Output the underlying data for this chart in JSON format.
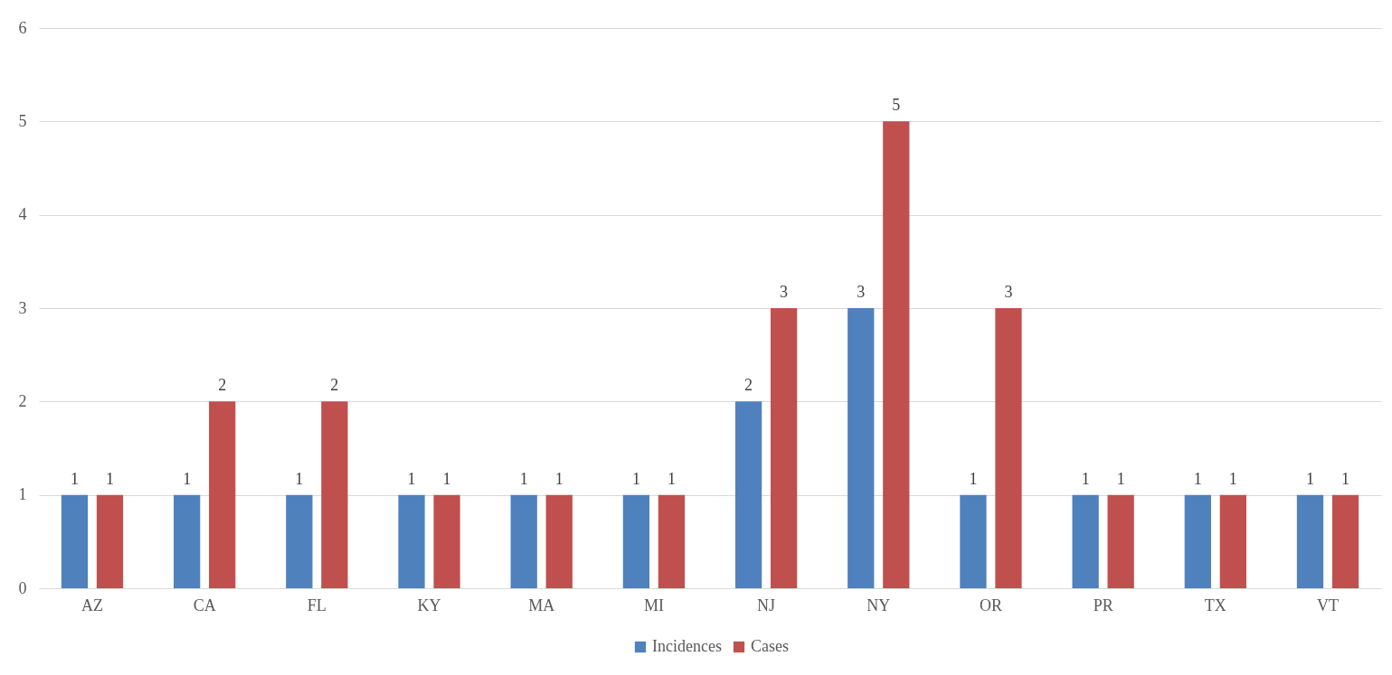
{
  "chart_data": {
    "type": "bar",
    "categories": [
      "AZ",
      "CA",
      "FL",
      "KY",
      "MA",
      "MI",
      "NJ",
      "NY",
      "OR",
      "PR",
      "TX",
      "VT"
    ],
    "series": [
      {
        "name": "Incidences",
        "color": "#4f81bd",
        "values": [
          1,
          1,
          1,
          1,
          1,
          1,
          2,
          3,
          1,
          1,
          1,
          1
        ]
      },
      {
        "name": "Cases",
        "color": "#c0504d",
        "values": [
          1,
          2,
          2,
          1,
          1,
          1,
          3,
          5,
          3,
          1,
          1,
          1
        ]
      }
    ],
    "ylim": [
      0,
      6
    ],
    "yticks": [
      0,
      1,
      2,
      3,
      4,
      5,
      6
    ],
    "grid": "y",
    "legend": "bottom",
    "data_labels": true
  }
}
